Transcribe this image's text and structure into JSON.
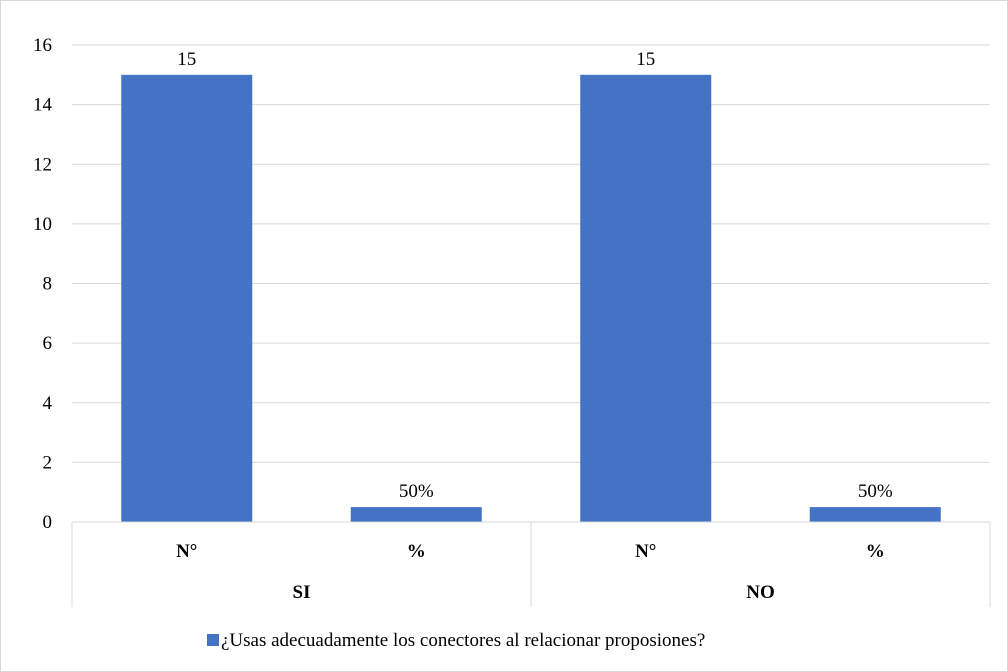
{
  "chart_data": {
    "type": "bar",
    "groups": [
      {
        "label": "SI",
        "categories": [
          "N°",
          "%"
        ]
      },
      {
        "label": "NO",
        "categories": [
          "N°",
          "%"
        ]
      }
    ],
    "series": [
      {
        "name": "¿Usas adecuadamente los conectores al relacionar proposiones?",
        "values": [
          15,
          0.5,
          15,
          0.5
        ],
        "data_labels": [
          "15",
          "50%",
          "15",
          "50%"
        ]
      }
    ],
    "ylim": [
      0,
      16
    ],
    "yticks": [
      "0",
      "2",
      "4",
      "6",
      "8",
      "10",
      "12",
      "14",
      "16"
    ],
    "grid": true,
    "legend_position": "bottom",
    "colors": {
      "bar": "#4472C4",
      "grid": "#d9d9d9",
      "axis": "#d9d9d9"
    }
  }
}
